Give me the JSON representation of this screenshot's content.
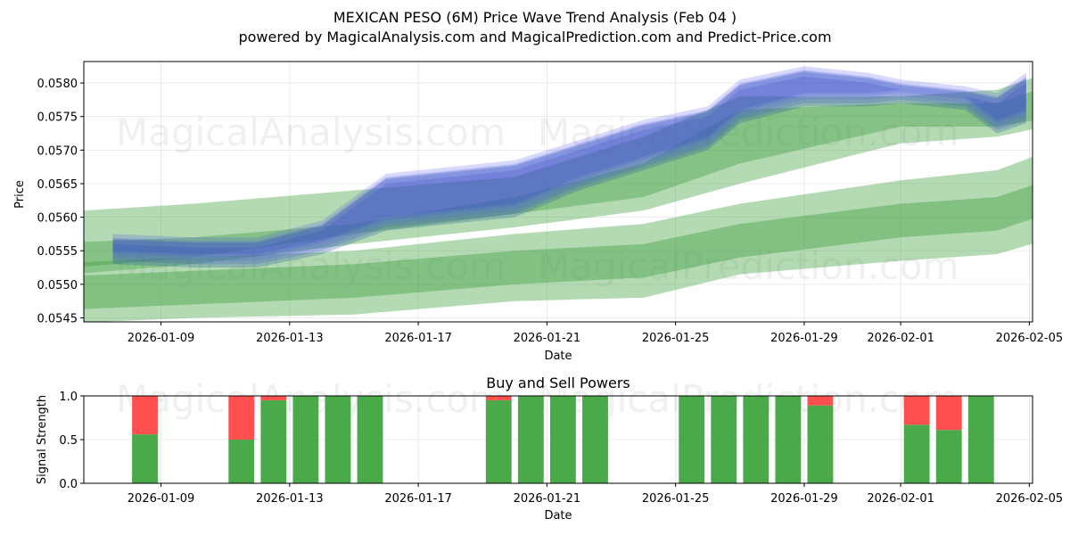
{
  "chart_data": [
    {
      "type": "area",
      "title": "MEXICAN PESO (6M) Price Wave Trend Analysis (Feb 04 )",
      "subtitle": "powered by MagicalAnalysis.com and MagicalPrediction.com and Predict-Price.com",
      "xlabel": "Date",
      "ylabel": "Price",
      "x_ticks": [
        "2026-01-09",
        "2026-01-13",
        "2026-01-17",
        "2026-01-21",
        "2026-01-25",
        "2026-01-29",
        "2026-02-01",
        "2026-02-05"
      ],
      "y_ticks": [
        "0.0545",
        "0.0550",
        "0.0555",
        "0.0560",
        "0.0565",
        "0.0570",
        "0.0575",
        "0.0580"
      ],
      "xlim_day": [
        -0.4,
        29.1
      ],
      "ylim": [
        0.05444,
        0.05832
      ],
      "grid": true,
      "x_tick_days": [
        2,
        6,
        10,
        14,
        18,
        22,
        25,
        29
      ],
      "watermarks": [
        "MagicalAnalysis.com",
        "MagicalPrediction.com"
      ],
      "green_bands": [
        {
          "name": "outer-upper",
          "x": [
            -2,
            3,
            8,
            13,
            17,
            20,
            25,
            28,
            30.5
          ],
          "low": [
            0.0551,
            0.0553,
            0.0556,
            0.05585,
            0.0561,
            0.0565,
            0.0571,
            0.0572,
            0.05745
          ],
          "high": [
            0.05605,
            0.0562,
            0.0564,
            0.0566,
            0.0572,
            0.0578,
            0.0578,
            0.0579,
            0.0583
          ]
        },
        {
          "name": "outer-lower",
          "x": [
            -2,
            3,
            8,
            13,
            17,
            20,
            25,
            28,
            30.5
          ],
          "low": [
            0.0544,
            0.0545,
            0.05455,
            0.05475,
            0.0548,
            0.05515,
            0.05535,
            0.05545,
            0.0558
          ],
          "high": [
            0.0553,
            0.0554,
            0.0555,
            0.05575,
            0.0559,
            0.0562,
            0.05655,
            0.0567,
            0.05715
          ]
        },
        {
          "name": "inner-upper",
          "x": [
            -2,
            3,
            8,
            13,
            17,
            20,
            25,
            28,
            30.5
          ],
          "low": [
            0.0552,
            0.0554,
            0.05575,
            0.05605,
            0.0563,
            0.0568,
            0.05735,
            0.05735,
            0.05755
          ],
          "high": [
            0.0556,
            0.0557,
            0.0559,
            0.0563,
            0.0568,
            0.0576,
            0.0577,
            0.0577,
            0.0581
          ]
        },
        {
          "name": "inner-lower",
          "x": [
            -2,
            3,
            8,
            13,
            17,
            20,
            25,
            28,
            30.5
          ],
          "low": [
            0.0546,
            0.0547,
            0.0548,
            0.055,
            0.0551,
            0.0554,
            0.0557,
            0.0558,
            0.0562
          ]
        }
      ],
      "blue_band": {
        "x": [
          0.5,
          3,
          5,
          7,
          9,
          11,
          13,
          15,
          17,
          19,
          20,
          22,
          24,
          25,
          27,
          28,
          28.9
        ],
        "low": [
          0.0554,
          0.05535,
          0.05535,
          0.05555,
          0.0559,
          0.056,
          0.0561,
          0.0565,
          0.0568,
          0.0571,
          0.0575,
          0.05775,
          0.05775,
          0.0578,
          0.0577,
          0.05735,
          0.0575
        ],
        "high": [
          0.0557,
          0.05565,
          0.05565,
          0.0559,
          0.0566,
          0.0567,
          0.0568,
          0.0571,
          0.0574,
          0.0576,
          0.058,
          0.0582,
          0.0581,
          0.058,
          0.0579,
          0.0578,
          0.0581
        ]
      }
    },
    {
      "type": "bar",
      "title": "Buy and Sell Powers",
      "xlabel": "Date",
      "ylabel": "Signal Strength",
      "x_ticks": [
        "2026-01-09",
        "2026-01-13",
        "2026-01-17",
        "2026-01-21",
        "2026-01-25",
        "2026-01-29",
        "2026-02-01",
        "2026-02-05"
      ],
      "y_ticks": [
        "0.0",
        "0.5",
        "1.0"
      ],
      "ylim": [
        0,
        1
      ],
      "grid": true,
      "colors": {
        "buy": "#4aaa4a",
        "sell": "#ff4f4f"
      },
      "dates": [
        "2026-01-08",
        "2026-01-11",
        "2026-01-12",
        "2026-01-13",
        "2026-01-14",
        "2026-01-15",
        "2026-01-19",
        "2026-01-20",
        "2026-01-21",
        "2026-01-22",
        "2026-01-25",
        "2026-01-26",
        "2026-01-27",
        "2026-01-28",
        "2026-01-29",
        "2026-02-01",
        "2026-02-02",
        "2026-02-03"
      ],
      "buy": [
        0.56,
        0.5,
        0.95,
        1.0,
        1.0,
        1.0,
        0.95,
        1.0,
        1.0,
        1.0,
        1.0,
        1.0,
        1.0,
        1.0,
        0.89,
        0.67,
        0.61,
        1.0
      ],
      "sell": [
        0.44,
        0.5,
        0.05,
        0.0,
        0.0,
        0.0,
        0.05,
        0.0,
        0.0,
        0.0,
        0.0,
        0.0,
        0.0,
        0.0,
        0.11,
        0.33,
        0.39,
        0.0
      ],
      "bar_days": [
        1.5,
        4.5,
        5.5,
        6.5,
        7.5,
        8.5,
        12.5,
        13.5,
        14.5,
        15.5,
        18.5,
        19.5,
        20.5,
        21.5,
        22.5,
        25.5,
        26.5,
        27.5
      ]
    }
  ]
}
